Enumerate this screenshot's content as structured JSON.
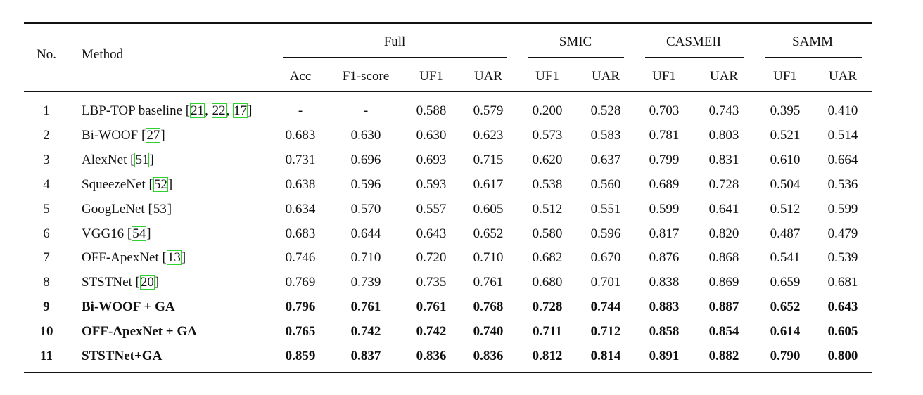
{
  "table": {
    "headers": {
      "no": "No.",
      "method": "Method",
      "groups": [
        "Full",
        "SMIC",
        "CASMEII",
        "SAMM"
      ],
      "subs": [
        "Acc",
        "F1-score",
        "UF1",
        "UAR",
        "UF1",
        "UAR",
        "UF1",
        "UAR",
        "UF1",
        "UAR"
      ]
    },
    "rows": [
      {
        "no": "1",
        "method": "LBP-TOP baseline",
        "refs": [
          "21",
          "22",
          "17"
        ],
        "values": [
          "-",
          "-",
          "0.588",
          "0.579",
          "0.200",
          "0.528",
          "0.703",
          "0.743",
          "0.395",
          "0.410"
        ],
        "bold": false
      },
      {
        "no": "2",
        "method": "Bi-WOOF",
        "refs": [
          "27"
        ],
        "values": [
          "0.683",
          "0.630",
          "0.630",
          "0.623",
          "0.573",
          "0.583",
          "0.781",
          "0.803",
          "0.521",
          "0.514"
        ],
        "bold": false
      },
      {
        "no": "3",
        "method": "AlexNet",
        "refs": [
          "51"
        ],
        "values": [
          "0.731",
          "0.696",
          "0.693",
          "0.715",
          "0.620",
          "0.637",
          "0.799",
          "0.831",
          "0.610",
          "0.664"
        ],
        "bold": false
      },
      {
        "no": "4",
        "method": "SqueezeNet",
        "refs": [
          "52"
        ],
        "values": [
          "0.638",
          "0.596",
          "0.593",
          "0.617",
          "0.538",
          "0.560",
          "0.689",
          "0.728",
          "0.504",
          "0.536"
        ],
        "bold": false
      },
      {
        "no": "5",
        "method": "GoogLeNet",
        "refs": [
          "53"
        ],
        "values": [
          "0.634",
          "0.570",
          "0.557",
          "0.605",
          "0.512",
          "0.551",
          "0.599",
          "0.641",
          "0.512",
          "0.599"
        ],
        "bold": false
      },
      {
        "no": "6",
        "method": "VGG16",
        "refs": [
          "54"
        ],
        "values": [
          "0.683",
          "0.644",
          "0.643",
          "0.652",
          "0.580",
          "0.596",
          "0.817",
          "0.820",
          "0.487",
          "0.479"
        ],
        "bold": false
      },
      {
        "no": "7",
        "method": "OFF-ApexNet",
        "refs": [
          "13"
        ],
        "values": [
          "0.746",
          "0.710",
          "0.720",
          "0.710",
          "0.682",
          "0.670",
          "0.876",
          "0.868",
          "0.541",
          "0.539"
        ],
        "bold": false
      },
      {
        "no": "8",
        "method": "STSTNet",
        "refs": [
          "20"
        ],
        "values": [
          "0.769",
          "0.739",
          "0.735",
          "0.761",
          "0.680",
          "0.701",
          "0.838",
          "0.869",
          "0.659",
          "0.681"
        ],
        "bold": false
      },
      {
        "no": "9",
        "method": "Bi-WOOF + GA",
        "refs": [],
        "values": [
          "0.796",
          "0.761",
          "0.761",
          "0.768",
          "0.728",
          "0.744",
          "0.883",
          "0.887",
          "0.652",
          "0.643"
        ],
        "bold": true
      },
      {
        "no": "10",
        "method": "OFF-ApexNet + GA",
        "refs": [],
        "values": [
          "0.765",
          "0.742",
          "0.742",
          "0.740",
          "0.711",
          "0.712",
          "0.858",
          "0.854",
          "0.614",
          "0.605"
        ],
        "bold": true
      },
      {
        "no": "11",
        "method": "STSTNet+GA",
        "refs": [],
        "values": [
          "0.859",
          "0.837",
          "0.836",
          "0.836",
          "0.812",
          "0.814",
          "0.891",
          "0.882",
          "0.790",
          "0.800"
        ],
        "bold": true
      }
    ]
  }
}
